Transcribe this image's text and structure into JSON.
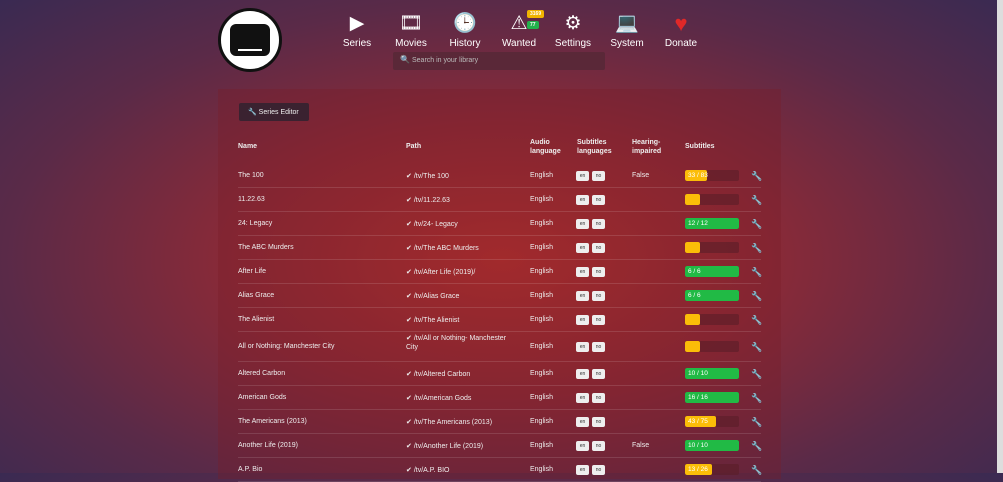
{
  "nav": [
    {
      "label": "Series",
      "icon": "play-icon",
      "glyph": "▶"
    },
    {
      "label": "Movies",
      "icon": "film-icon",
      "glyph": "🎞"
    },
    {
      "label": "History",
      "icon": "clock-icon",
      "glyph": "🕒"
    },
    {
      "label": "Wanted",
      "icon": "warning-icon",
      "glyph": "⚠",
      "badges": [
        {
          "text": "3169",
          "color": "#f0b400"
        },
        {
          "text": "77",
          "color": "#22b14c"
        }
      ]
    },
    {
      "label": "Settings",
      "icon": "gears-icon",
      "glyph": "⚙"
    },
    {
      "label": "System",
      "icon": "laptop-icon",
      "glyph": "💻"
    },
    {
      "label": "Donate",
      "icon": "heart-icon",
      "glyph": "♥"
    }
  ],
  "search": {
    "placeholder": "Search in your library"
  },
  "series_editor_label": "Series Editor",
  "headers": {
    "name": "Name",
    "path": "Path",
    "audio": "Audio language",
    "subs_langs": "Subtitles languages",
    "hi": "Hearing-impaired",
    "subtitles": "Subtitles"
  },
  "colors": {
    "green": "#21ba45",
    "yellow": "#fbbd08"
  },
  "rows": [
    {
      "name": "The 100",
      "path": "/tv/The 100",
      "audio": "English",
      "langs": [
        "en",
        "no"
      ],
      "hi": "False",
      "sub_label": "33 / 83",
      "fraction": 0.4,
      "status": "yellow"
    },
    {
      "name": "11.22.63",
      "path": "/tv/11.22.63",
      "audio": "English",
      "langs": [
        "en",
        "no"
      ],
      "hi": "",
      "sub_label": "",
      "fraction": 0,
      "status": "yellow"
    },
    {
      "name": "24: Legacy",
      "path": "/tv/24- Legacy",
      "audio": "English",
      "langs": [
        "en",
        "no"
      ],
      "hi": "",
      "sub_label": "12 / 12",
      "fraction": 1,
      "status": "green"
    },
    {
      "name": "The ABC Murders",
      "path": "/tv/The ABC Murders",
      "audio": "English",
      "langs": [
        "en",
        "no"
      ],
      "hi": "",
      "sub_label": "",
      "fraction": 0,
      "status": "yellow"
    },
    {
      "name": "After Life",
      "path": "/tv/After Life (2019)/",
      "audio": "English",
      "langs": [
        "en",
        "no"
      ],
      "hi": "",
      "sub_label": "6 / 6",
      "fraction": 1,
      "status": "green"
    },
    {
      "name": "Alias Grace",
      "path": "/tv/Alias Grace",
      "audio": "English",
      "langs": [
        "en",
        "no"
      ],
      "hi": "",
      "sub_label": "6 / 6",
      "fraction": 1,
      "status": "green"
    },
    {
      "name": "The Alienist",
      "path": "/tv/The Alienist",
      "audio": "English",
      "langs": [
        "en",
        "no"
      ],
      "hi": "",
      "sub_label": "",
      "fraction": 0,
      "status": "yellow"
    },
    {
      "name": "All or Nothing: Manchester City",
      "path": "/tv/All or Nothing- Manchester City",
      "audio": "English",
      "langs": [
        "en",
        "no"
      ],
      "hi": "",
      "sub_label": "",
      "fraction": 0,
      "status": "yellow"
    },
    {
      "name": "Altered Carbon",
      "path": "/tv/Altered Carbon",
      "audio": "English",
      "langs": [
        "en",
        "no"
      ],
      "hi": "",
      "sub_label": "10 / 10",
      "fraction": 1,
      "status": "green"
    },
    {
      "name": "American Gods",
      "path": "/tv/American Gods",
      "audio": "English",
      "langs": [
        "en",
        "no"
      ],
      "hi": "",
      "sub_label": "16 / 16",
      "fraction": 1,
      "status": "green"
    },
    {
      "name": "The Americans (2013)",
      "path": "/tv/The Americans (2013)",
      "audio": "English",
      "langs": [
        "en",
        "no"
      ],
      "hi": "",
      "sub_label": "43 / 75",
      "fraction": 0.57,
      "status": "yellow"
    },
    {
      "name": "Another Life (2019)",
      "path": "/tv/Another Life (2019)",
      "audio": "English",
      "langs": [
        "en",
        "no"
      ],
      "hi": "False",
      "sub_label": "10 / 10",
      "fraction": 1,
      "status": "green"
    },
    {
      "name": "A.P. Bio",
      "path": "/tv/A.P. BIO",
      "audio": "English",
      "langs": [
        "en",
        "no"
      ],
      "hi": "",
      "sub_label": "13 / 26",
      "fraction": 0.5,
      "status": "yellow"
    }
  ]
}
